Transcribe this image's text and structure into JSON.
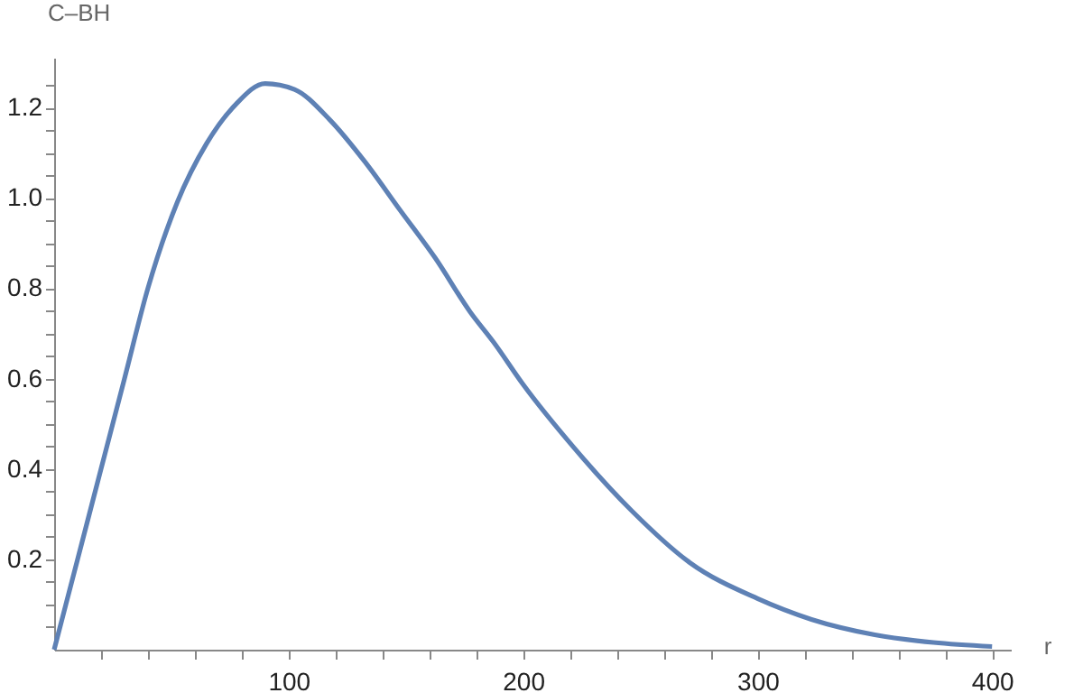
{
  "chart_data": {
    "type": "line",
    "xlabel": "r",
    "ylabel": "C–BH",
    "x": [
      0,
      10,
      20,
      30,
      40,
      52.5,
      65,
      77.5,
      90,
      102.5,
      117.5,
      132.5,
      147.5,
      162.5,
      177.5,
      187.5,
      200,
      221.7,
      246.4,
      271,
      300,
      323,
      350,
      375,
      400
    ],
    "series": [
      {
        "color": "#5e81b5",
        "values": [
          0,
          0.2,
          0.4,
          0.6,
          0.8,
          0.99,
          1.12,
          1.207,
          1.253,
          1.24,
          1.173,
          1.08,
          0.973,
          0.867,
          0.747,
          0.68,
          0.587,
          0.447,
          0.307,
          0.193,
          0.113,
          0.067,
          0.033,
          0.016,
          0.007
        ]
      }
    ],
    "xlim": [
      0,
      408
    ],
    "ylim": [
      0,
      1.31
    ],
    "xticks": [
      {
        "value": 20,
        "label": null
      },
      {
        "value": 40,
        "label": null
      },
      {
        "value": 60,
        "label": null
      },
      {
        "value": 80,
        "label": null
      },
      100,
      {
        "value": 120,
        "label": null
      },
      {
        "value": 140,
        "label": null
      },
      {
        "value": 160,
        "label": null
      },
      {
        "value": 180,
        "label": null
      },
      200,
      {
        "value": 220,
        "label": null
      },
      {
        "value": 240,
        "label": null
      },
      {
        "value": 260,
        "label": null
      },
      {
        "value": 280,
        "label": null
      },
      300,
      {
        "value": 320,
        "label": null
      },
      {
        "value": 340,
        "label": null
      },
      {
        "value": 360,
        "label": null
      },
      {
        "value": 380,
        "label": null
      },
      400
    ],
    "yticks": [
      {
        "value": 0.05,
        "label": null
      },
      {
        "value": 0.1,
        "label": null
      },
      {
        "value": 0.15,
        "label": null
      },
      {
        "value": 0.2,
        "label": "0.2"
      },
      {
        "value": 0.25,
        "label": null
      },
      {
        "value": 0.3,
        "label": null
      },
      {
        "value": 0.35,
        "label": null
      },
      {
        "value": 0.4,
        "label": "0.4"
      },
      {
        "value": 0.45,
        "label": null
      },
      {
        "value": 0.5,
        "label": null
      },
      {
        "value": 0.55,
        "label": null
      },
      {
        "value": 0.6,
        "label": "0.6"
      },
      {
        "value": 0.65,
        "label": null
      },
      {
        "value": 0.7,
        "label": null
      },
      {
        "value": 0.75,
        "label": null
      },
      {
        "value": 0.8,
        "label": "0.8"
      },
      {
        "value": 0.85,
        "label": null
      },
      {
        "value": 0.9,
        "label": null
      },
      {
        "value": 0.95,
        "label": null
      },
      {
        "value": 1.0,
        "label": "1.0"
      },
      {
        "value": 1.05,
        "label": null
      },
      {
        "value": 1.1,
        "label": null
      },
      {
        "value": 1.15,
        "label": null
      },
      {
        "value": 1.2,
        "label": "1.2"
      },
      {
        "value": 1.25,
        "label": null
      }
    ],
    "grid": false,
    "marker": "none",
    "line_style": "solid"
  }
}
